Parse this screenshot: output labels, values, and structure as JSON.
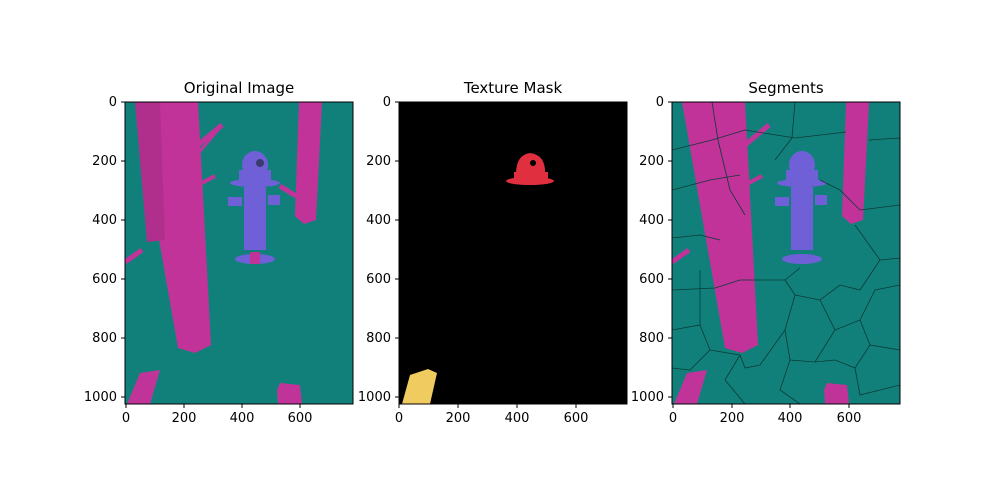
{
  "figure": {
    "panels": [
      {
        "id": "original",
        "title": "Original Image",
        "background": "#12807a",
        "xticks": [
          "0",
          "200",
          "400",
          "600"
        ],
        "yticks": [
          "0",
          "200",
          "400",
          "600",
          "800",
          "1000"
        ]
      },
      {
        "id": "mask",
        "title": "Texture Mask",
        "background": "#000000",
        "xticks": [
          "0",
          "200",
          "400",
          "600"
        ],
        "yticks": [
          "0",
          "200",
          "400",
          "600",
          "800",
          "1000"
        ]
      },
      {
        "id": "segments",
        "title": "Segments",
        "background": "#12807a",
        "xticks": [
          "0",
          "200",
          "400",
          "600"
        ],
        "yticks": [
          "0",
          "200",
          "400",
          "600",
          "800",
          "1000"
        ]
      }
    ],
    "colors": {
      "teal": "#12807a",
      "magenta": "#c0349a",
      "pole": "#c23399",
      "hydrant": "#7060d8",
      "mask_red": "#e03040",
      "mask_yellow": "#f0cc60",
      "segment_line": "#0a3a36"
    }
  }
}
